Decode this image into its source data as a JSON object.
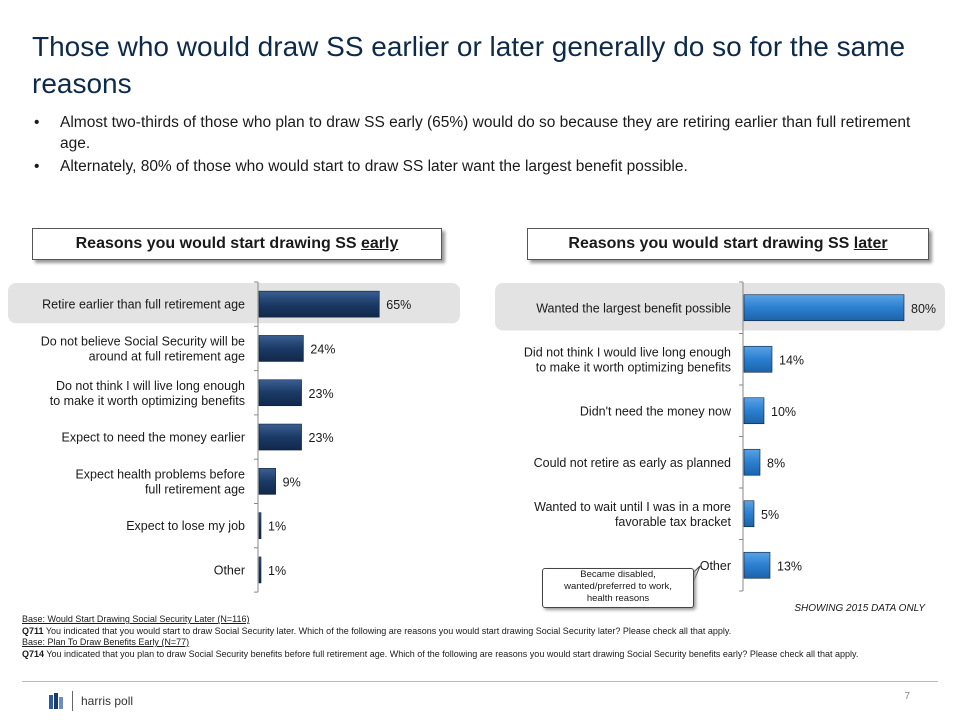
{
  "title": "Those who would draw SS earlier or later generally do so for the same reasons",
  "bullets": [
    "Almost two-thirds of those who plan to draw SS early (65%) would do so because they are retiring earlier than full retirement age.",
    "Alternately, 80% of those who would start to draw SS later want the largest benefit possible."
  ],
  "colors": {
    "early_bar": "#1b3a66",
    "later_bar": "#2b7fd0",
    "title": "#0d2a4a",
    "highlight": "#e3e3e3"
  },
  "chart_data": [
    {
      "type": "bar",
      "orientation": "horizontal",
      "title_prefix": "Reasons you would start drawing SS ",
      "title_underlined": "early",
      "categories": [
        "Retire earlier than full retirement age",
        "Do not believe Social Security will be around at full retirement age",
        "Do not think I will live long enough to make it worth optimizing benefits",
        "Expect to need the money earlier",
        "Expect health problems before full retirement age",
        "Expect to lose my job",
        "Other"
      ],
      "category_lines": [
        [
          "Retire earlier than full retirement age"
        ],
        [
          "Do not believe Social Security will be",
          "around at full retirement age"
        ],
        [
          "Do not think I will live long enough",
          "to make it worth optimizing benefits"
        ],
        [
          "Expect to need the money earlier"
        ],
        [
          "Expect health problems before",
          "full retirement age"
        ],
        [
          "Expect to lose my job"
        ],
        [
          "Other"
        ]
      ],
      "values": [
        65,
        24,
        23,
        23,
        9,
        1,
        1
      ],
      "labels": [
        "65%",
        "24%",
        "23%",
        "23%",
        "9%",
        "1%",
        "1%"
      ],
      "highlight_index": 0,
      "unit": "%"
    },
    {
      "type": "bar",
      "orientation": "horizontal",
      "title_prefix": "Reasons you would start drawing SS ",
      "title_underlined": "later",
      "categories": [
        "Wanted the largest benefit possible",
        "Did not think I would live long enough to make it worth optimizing benefits",
        "Didn't need the money now",
        "Could not retire as early as planned",
        "Wanted to wait until I was in a more favorable tax bracket",
        "Other"
      ],
      "category_lines": [
        [
          "Wanted the largest benefit possible"
        ],
        [
          "Did not think I would live long enough",
          "to make it worth optimizing benefits"
        ],
        [
          "Didn't need the money now"
        ],
        [
          "Could not retire as early as planned"
        ],
        [
          "Wanted to wait until I was in a more",
          "favorable tax bracket"
        ],
        [
          "Other"
        ]
      ],
      "values": [
        80,
        14,
        10,
        8,
        5,
        13
      ],
      "labels": [
        "80%",
        "14%",
        "10%",
        "8%",
        "5%",
        "13%"
      ],
      "highlight_index": 0,
      "unit": "%"
    }
  ],
  "callout": {
    "lines": [
      "Became disabled,",
      "wanted/preferred to work,",
      "health reasons"
    ]
  },
  "showing_note": "SHOWING 2015 DATA ONLY",
  "footnotes": {
    "base_later": "Base: Would Start Drawing Social Security Later (N=116)",
    "q711_label": "Q711",
    "q711_text": " You indicated that you would start to draw Social Security later. Which of the following are reasons you would start drawing Social Security later? Please check all that apply.",
    "base_early": "Base: Plan To Draw Benefits Early (N=77)",
    "q714_label": "Q714",
    "q714_text": " You indicated that you plan to draw Social Security benefits before full retirement age. Which of the following are reasons you would start drawing Social Security benefits early? Please check all that apply."
  },
  "logo_text": "harris poll",
  "page_number": "7"
}
